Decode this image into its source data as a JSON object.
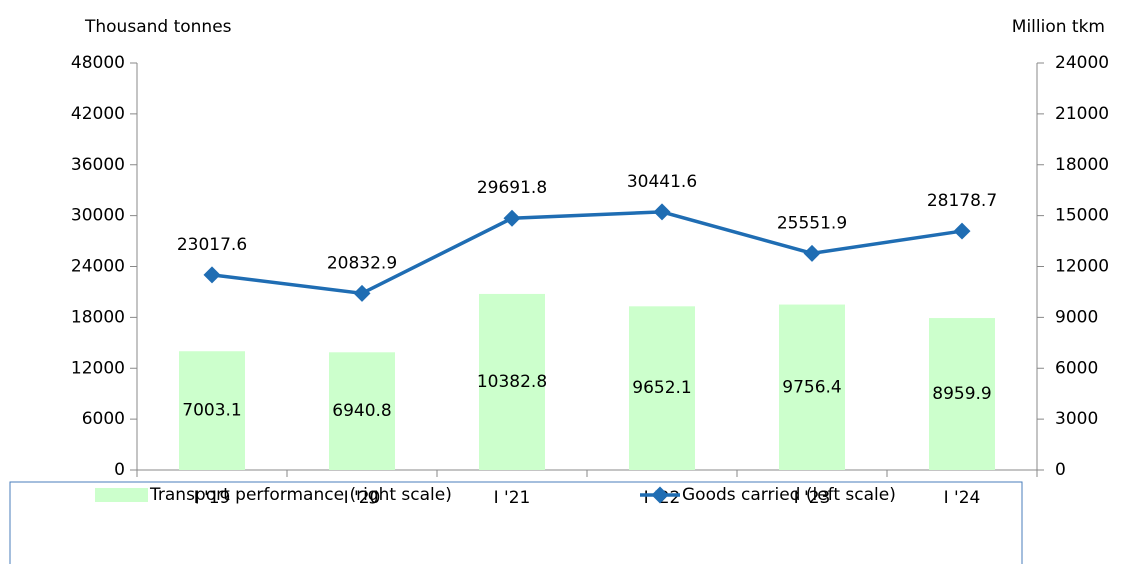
{
  "chart_data": {
    "type": "bar-line",
    "ylabel": "Thousand tonnes",
    "y2label": "Million tkm",
    "categories": [
      "I '19",
      "I '20",
      "I '21",
      "I '22",
      "I '23",
      "I '24"
    ],
    "series": [
      {
        "name": "Transport performance (right scale)",
        "type": "bar",
        "axis": "y2",
        "color": "#ccffcc",
        "values": [
          7003.1,
          6940.8,
          10382.8,
          9652.1,
          9756.4,
          8959.9
        ]
      },
      {
        "name": "Goods carried (left scale)",
        "type": "line",
        "axis": "y",
        "color": "#1f6db3",
        "values": [
          23017.6,
          20832.9,
          29691.8,
          30441.6,
          25551.9,
          28178.7
        ]
      }
    ],
    "ylim": [
      0,
      48000
    ],
    "yticks": [
      0,
      6000,
      12000,
      18000,
      24000,
      30000,
      36000,
      42000,
      48000
    ],
    "y2lim": [
      0,
      24000
    ],
    "y2ticks": [
      0,
      3000,
      6000,
      9000,
      12000,
      15000,
      18000,
      21000,
      24000
    ],
    "legend": "bottom"
  }
}
